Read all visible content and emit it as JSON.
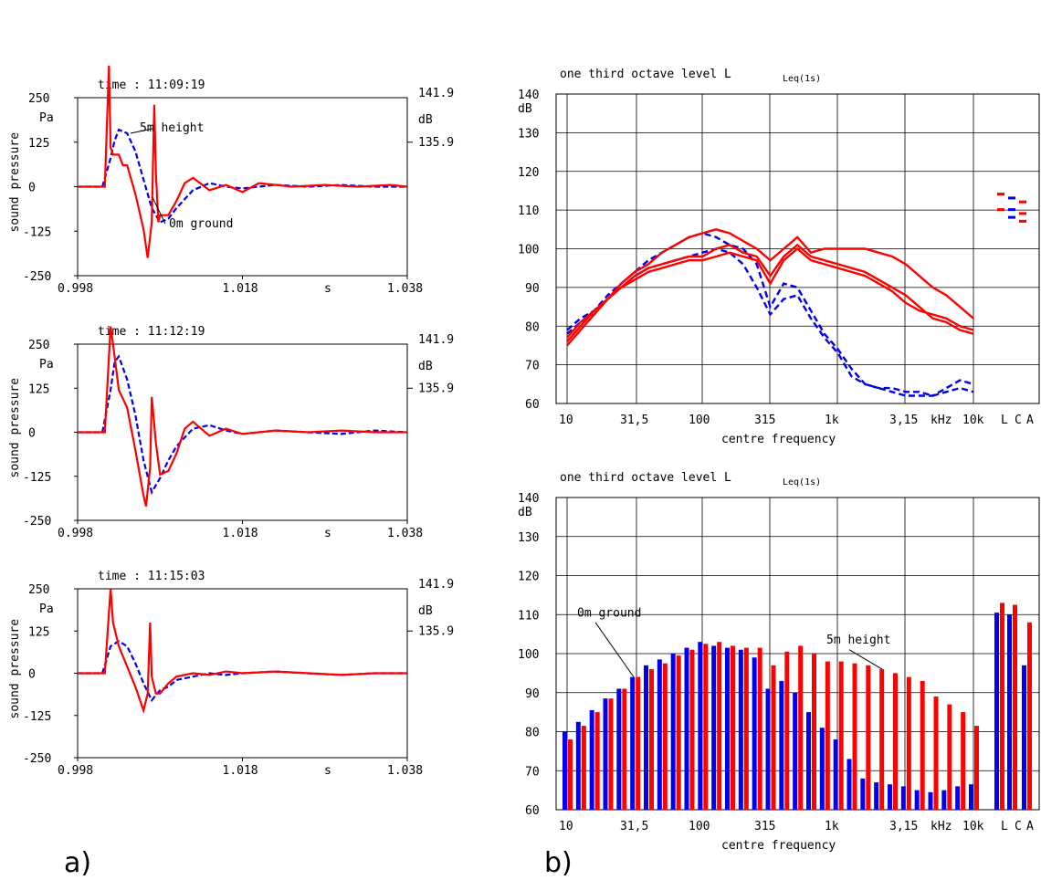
{
  "panel_labels": {
    "a": "a)",
    "b": "b)"
  },
  "colors": {
    "red": "#ff0000",
    "blue": "#0000ee"
  },
  "chart_data": [
    {
      "type": "line",
      "time_text": "time :  11:09:19",
      "annotations": [
        "5m height",
        "0m ground"
      ],
      "ylabel": "sound pressure",
      "yunit": "Pa",
      "right_ticks": [
        "141.9",
        "135.9"
      ],
      "right_unit": "dB",
      "y_tick_labels": [
        "250",
        "125",
        "0",
        "-125",
        "-250"
      ],
      "x_tick_labels": [
        "0.998",
        "1.018",
        "1.038"
      ],
      "x_unit": "s",
      "xlim": [
        0.998,
        1.038
      ],
      "ylim": [
        -250,
        250
      ],
      "series": [
        {
          "color": "blue",
          "dash": true,
          "x": [
            0.998,
            1.0,
            1.001,
            1.002,
            1.0025,
            1.003,
            1.004,
            1.005,
            1.006,
            1.007,
            1.008,
            1.009,
            1.01,
            1.012,
            1.014,
            1.016,
            1.018,
            1.022,
            1.026,
            1.03,
            1.034,
            1.038
          ],
          "y": [
            0,
            0,
            0,
            80,
            130,
            160,
            150,
            100,
            20,
            -60,
            -100,
            -90,
            -60,
            -10,
            10,
            0,
            -5,
            5,
            0,
            5,
            0,
            0
          ]
        },
        {
          "color": "red",
          "dash": false,
          "x": [
            0.998,
            1.0,
            1.0013,
            1.0018,
            1.002,
            1.0023,
            1.003,
            1.0035,
            1.004,
            1.005,
            1.006,
            1.0065,
            1.007,
            1.0073,
            1.0075,
            1.0078,
            1.008,
            1.009,
            1.01,
            1.011,
            1.012,
            1.014,
            1.016,
            1.018,
            1.02,
            1.024,
            1.028,
            1.032,
            1.036,
            1.038
          ],
          "y": [
            0,
            0,
            0,
            340,
            110,
            90,
            90,
            60,
            60,
            -20,
            -120,
            -200,
            -100,
            230,
            40,
            -100,
            -80,
            -80,
            -40,
            10,
            25,
            -10,
            5,
            -15,
            10,
            0,
            5,
            0,
            5,
            0
          ]
        }
      ]
    },
    {
      "type": "line",
      "time_text": "time :  11:12:19",
      "ylabel": "sound pressure",
      "yunit": "Pa",
      "right_ticks": [
        "141.9",
        "135.9"
      ],
      "right_unit": "dB",
      "y_tick_labels": [
        "250",
        "125",
        "0",
        "-125",
        "-250"
      ],
      "x_tick_labels": [
        "0.998",
        "1.018",
        "1.038"
      ],
      "x_unit": "s",
      "xlim": [
        0.998,
        1.038
      ],
      "ylim": [
        -250,
        250
      ],
      "series": [
        {
          "color": "blue",
          "dash": true,
          "x": [
            0.998,
            1.0,
            1.001,
            1.002,
            1.0025,
            1.003,
            1.004,
            1.005,
            1.006,
            1.007,
            1.008,
            1.009,
            1.01,
            1.012,
            1.014,
            1.016,
            1.018,
            1.022,
            1.026,
            1.03,
            1.034,
            1.038
          ],
          "y": [
            0,
            0,
            0,
            120,
            200,
            215,
            150,
            50,
            -80,
            -170,
            -130,
            -80,
            -40,
            10,
            20,
            5,
            -5,
            5,
            0,
            -5,
            5,
            0
          ]
        },
        {
          "color": "red",
          "dash": false,
          "x": [
            0.998,
            1.0,
            1.0013,
            1.002,
            1.0023,
            1.003,
            1.004,
            1.005,
            1.006,
            1.0063,
            1.0068,
            1.007,
            1.0075,
            1.008,
            1.009,
            1.01,
            1.011,
            1.012,
            1.014,
            1.016,
            1.018,
            1.022,
            1.026,
            1.03,
            1.034,
            1.038
          ],
          "y": [
            0,
            0,
            0,
            300,
            250,
            120,
            70,
            -50,
            -180,
            -210,
            -100,
            100,
            -30,
            -120,
            -110,
            -60,
            10,
            30,
            -10,
            10,
            -5,
            5,
            0,
            5,
            0,
            0
          ]
        }
      ]
    },
    {
      "type": "line",
      "time_text": "time :  11:15:03",
      "ylabel": "sound pressure",
      "yunit": "Pa",
      "right_ticks": [
        "141.9",
        "135.9"
      ],
      "right_unit": "dB",
      "y_tick_labels": [
        "250",
        "125",
        "0",
        "-125",
        "-250"
      ],
      "x_tick_labels": [
        "0.998",
        "1.018",
        "1.038"
      ],
      "x_unit": "s",
      "xlim": [
        0.998,
        1.038
      ],
      "ylim": [
        -250,
        250
      ],
      "series": [
        {
          "color": "blue",
          "dash": true,
          "x": [
            0.998,
            1.0,
            1.001,
            1.002,
            1.003,
            1.004,
            1.005,
            1.006,
            1.007,
            1.008,
            1.009,
            1.01,
            1.012,
            1.014,
            1.016,
            1.018,
            1.022,
            1.026,
            1.03,
            1.034,
            1.038
          ],
          "y": [
            0,
            0,
            0,
            80,
            95,
            80,
            30,
            -30,
            -80,
            -50,
            -40,
            -20,
            -10,
            0,
            -5,
            0,
            5,
            0,
            -5,
            0,
            0
          ]
        },
        {
          "color": "red",
          "dash": false,
          "x": [
            0.998,
            1.0,
            1.0013,
            1.002,
            1.0023,
            1.003,
            1.004,
            1.005,
            1.006,
            1.0065,
            1.0068,
            1.007,
            1.0075,
            1.008,
            1.009,
            1.01,
            1.012,
            1.014,
            1.016,
            1.018,
            1.022,
            1.026,
            1.03,
            1.034,
            1.038
          ],
          "y": [
            0,
            0,
            0,
            250,
            150,
            80,
            20,
            -40,
            -110,
            -60,
            150,
            -10,
            -60,
            -60,
            -30,
            -10,
            0,
            -5,
            5,
            0,
            5,
            0,
            -5,
            0,
            0
          ]
        }
      ]
    },
    {
      "type": "line",
      "title": "one third octave level L",
      "title_sub": "Leq(1s)",
      "yunit": "dB",
      "xlabel": "centre frequency",
      "ylim": [
        60,
        140
      ],
      "y_ticks": [
        140,
        130,
        120,
        110,
        100,
        90,
        80,
        70,
        60
      ],
      "x_tick_labels": [
        "10",
        "31,5",
        "100",
        "315",
        "1k",
        "3,15",
        "kHz",
        "10k",
        "L",
        "C",
        "A"
      ],
      "x": [
        10,
        12.5,
        16,
        20,
        25,
        31.5,
        40,
        50,
        63,
        80,
        100,
        125,
        160,
        200,
        250,
        315,
        400,
        500,
        630,
        800,
        1000,
        1250,
        1600,
        2000,
        2500,
        3150,
        4000,
        5000,
        6300,
        8000,
        10000
      ],
      "series": [
        {
          "color": "blue",
          "dash": true,
          "values": [
            79,
            82,
            84,
            88,
            91,
            94,
            97,
            99,
            101,
            103,
            104,
            103,
            101,
            100,
            96,
            85,
            91,
            90,
            84,
            78,
            74,
            69,
            65,
            64,
            63,
            62,
            62,
            62,
            64,
            66,
            65
          ]
        },
        {
          "color": "blue",
          "dash": true,
          "values": [
            78,
            81,
            83,
            87,
            90,
            93,
            95,
            96,
            97,
            98,
            99,
            100,
            99,
            96,
            90,
            83,
            87,
            88,
            82,
            77,
            73,
            67,
            65,
            64,
            64,
            63,
            63,
            62,
            63,
            64,
            63
          ]
        },
        {
          "color": "red",
          "dash": false,
          "values": [
            75,
            79,
            83,
            87,
            91,
            94,
            96,
            99,
            101,
            103,
            104,
            105,
            104,
            102,
            100,
            97,
            100,
            103,
            99,
            100,
            100,
            100,
            100,
            99,
            98,
            96,
            93,
            90,
            88,
            85,
            82
          ]
        },
        {
          "color": "red",
          "dash": false,
          "values": [
            76,
            80,
            84,
            87,
            90,
            93,
            95,
            96,
            97,
            98,
            98,
            100,
            101,
            99,
            98,
            93,
            98,
            101,
            98,
            97,
            96,
            95,
            94,
            92,
            90,
            88,
            85,
            82,
            81,
            79,
            78
          ]
        },
        {
          "color": "red",
          "dash": false,
          "values": [
            77,
            81,
            84,
            87,
            90,
            92,
            94,
            95,
            96,
            97,
            97,
            98,
            99,
            98,
            97,
            91,
            97,
            100,
            97,
            96,
            95,
            94,
            93,
            91,
            89,
            86,
            84,
            83,
            82,
            80,
            79
          ]
        }
      ],
      "lca_marks": [
        {
          "color": "red",
          "values": [
            114,
            114,
            110
          ]
        },
        {
          "color": "blue",
          "values": [
            113,
            110,
            108
          ]
        },
        {
          "color": "red",
          "values": [
            112,
            109,
            107
          ]
        }
      ]
    },
    {
      "type": "bar",
      "title": "one third octave level L",
      "title_sub": "Leq(1s)",
      "yunit": "dB",
      "xlabel": "centre frequency",
      "annotations": [
        "0m ground",
        "5m height"
      ],
      "ylim": [
        60,
        140
      ],
      "y_ticks": [
        140,
        130,
        120,
        110,
        100,
        90,
        80,
        70,
        60
      ],
      "x_tick_labels": [
        "10",
        "31,5",
        "100",
        "315",
        "1k",
        "3,15",
        "kHz",
        "10k",
        "L",
        "C",
        "A"
      ],
      "categories": [
        "10",
        "12,5",
        "16",
        "20",
        "25",
        "31,5",
        "40",
        "50",
        "63",
        "80",
        "100",
        "125",
        "160",
        "200",
        "250",
        "315",
        "400",
        "500",
        "630",
        "800",
        "1k",
        "1,25k",
        "1,6k",
        "2k",
        "2,5k",
        "3,15k",
        "4k",
        "5k",
        "6,3k",
        "8k",
        "10k"
      ],
      "series": [
        {
          "name": "0m ground",
          "color": "blue",
          "values": [
            80,
            82.5,
            85.5,
            88.5,
            91,
            94,
            97,
            98.5,
            100,
            101.5,
            103,
            102,
            101.5,
            101,
            99,
            91,
            93,
            90,
            85,
            81,
            78,
            73,
            68,
            67,
            66.5,
            66,
            65,
            64.5,
            65,
            66,
            66.5
          ]
        },
        {
          "name": "5m height",
          "color": "red",
          "values": [
            78,
            81.5,
            85,
            88.5,
            91,
            94,
            96,
            97.5,
            99.5,
            101,
            102.5,
            103,
            102,
            101.5,
            101.5,
            97,
            100.5,
            102,
            100,
            98,
            98,
            97.5,
            97,
            96,
            95,
            94,
            93,
            89,
            87,
            85,
            81.5
          ]
        }
      ],
      "lca": {
        "blue": [
          110.5,
          110,
          97
        ],
        "red": [
          113,
          112.5,
          108
        ]
      }
    }
  ]
}
